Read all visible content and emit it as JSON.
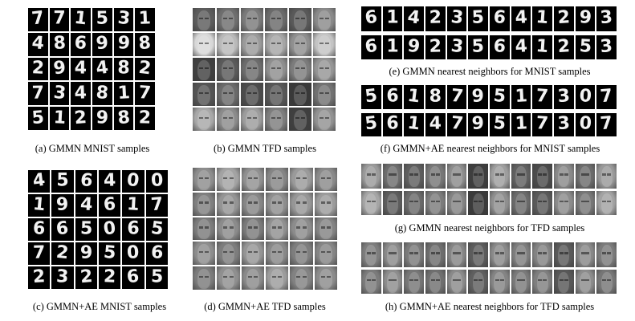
{
  "captions": {
    "a": "(a) GMMN MNIST samples",
    "b": "(b) GMMN TFD samples",
    "c": "(c) GMMN+AE MNIST samples",
    "d": "(d) GMMN+AE TFD samples",
    "e": "(e) GMMN nearest neighbors for MNIST samples",
    "f": "(f) GMMN+AE nearest neighbors for MNIST samples",
    "g": "(g) GMMN nearest neighbors for TFD samples",
    "h": "(h) GMMN+AE nearest neighbors for TFD samples"
  },
  "panels": {
    "a": [
      "7",
      "7",
      "1",
      "5",
      "3",
      "1",
      "4",
      "8",
      "6",
      "9",
      "9",
      "8",
      "2",
      "9",
      "4",
      "4",
      "8",
      "2",
      "7",
      "3",
      "4",
      "8",
      "1",
      "7",
      "5",
      "1",
      "2",
      "9",
      "8",
      "2"
    ],
    "c": [
      "4",
      "5",
      "6",
      "4",
      "0",
      "0",
      "1",
      "9",
      "4",
      "6",
      "1",
      "7",
      "6",
      "6",
      "5",
      "0",
      "6",
      "5",
      "7",
      "2",
      "9",
      "5",
      "0",
      "6",
      "2",
      "3",
      "2",
      "2",
      "6",
      "5"
    ],
    "e": {
      "samples": [
        "6",
        "1",
        "4",
        "2",
        "3",
        "5",
        "6",
        "4",
        "1",
        "2",
        "9",
        "3"
      ],
      "neighbors": [
        "6",
        "1",
        "9",
        "2",
        "3",
        "5",
        "6",
        "4",
        "1",
        "2",
        "5",
        "3"
      ]
    },
    "f": {
      "samples": [
        "5",
        "6",
        "1",
        "8",
        "7",
        "9",
        "5",
        "1",
        "7",
        "3",
        "0",
        "7"
      ],
      "neighbors": [
        "5",
        "6",
        "1",
        "4",
        "7",
        "9",
        "5",
        "1",
        "7",
        "3",
        "0",
        "7"
      ]
    }
  },
  "faces": {
    "b": [
      "#5c5c5c",
      "#6e6e6e",
      "#7a7a7a",
      "#6a6a6a",
      "#595959",
      "#8a8a8a",
      "#d8d8d8",
      "#b9b9b9",
      "#9a9a9a",
      "#a5a5a5",
      "#8f8f8f",
      "#c4c4c4",
      "#404040",
      "#5a5a5a",
      "#6c6c6c",
      "#8e8e8e",
      "#7c7c7c",
      "#959595",
      "#545454",
      "#6a6a6a",
      "#4c4c4c",
      "#575757",
      "#393939",
      "#727272",
      "#a8a8a8",
      "#8b8b8b",
      "#9c9c9c",
      "#7d7d7d",
      "#3f3f3f",
      "#929292"
    ],
    "d": [
      "#8d8d8d",
      "#a3a3a3",
      "#909090",
      "#858585",
      "#9a9a9a",
      "#8a8a8a",
      "#7f7f7f",
      "#949494",
      "#868686",
      "#8e8e8e",
      "#969696",
      "#9b9b9b",
      "#7b7b7b",
      "#8b8b8b",
      "#7a7a7a",
      "#909090",
      "#8c8c8c",
      "#838383",
      "#8d8d8d",
      "#7d7d7d",
      "#959595",
      "#888888",
      "#7e7e7e",
      "#858585",
      "#7b7b7b",
      "#8f8f8f",
      "#8a8a8a",
      "#9c9c9c",
      "#828282",
      "#8b8b8b"
    ],
    "g_top": [
      "#9a9a9a",
      "#6d6d6d",
      "#5e5e5e",
      "#777777",
      "#8c8c8c",
      "#3e3e3e",
      "#9e9e9e",
      "#606060",
      "#4b4b4b",
      "#8a8a8a",
      "#6c6c6c",
      "#999999"
    ],
    "g_bottom": [
      "#a5a5a5",
      "#5d5d5d",
      "#6a6a6a",
      "#7c7c7c",
      "#838383",
      "#3b3b3b",
      "#8f8f8f",
      "#6a6a6a",
      "#5a5a5a",
      "#8c8c8c",
      "#777777",
      "#a2a2a2"
    ],
    "h_top": [
      "#7d7d7d",
      "#8a8a8a",
      "#7a7a7a",
      "#6d6d6d",
      "#858585",
      "#5c5c5c",
      "#898989",
      "#7e7e7e",
      "#838383",
      "#5a5a5a",
      "#888888",
      "#7b7b7b"
    ],
    "h_bottom": [
      "#7b7b7b",
      "#8d8d8d",
      "#767676",
      "#6f6f6f",
      "#8a8a8a",
      "#5f5f5f",
      "#848484",
      "#7a7a7a",
      "#7f7f7f",
      "#575757",
      "#8c8c8c",
      "#767676"
    ]
  }
}
